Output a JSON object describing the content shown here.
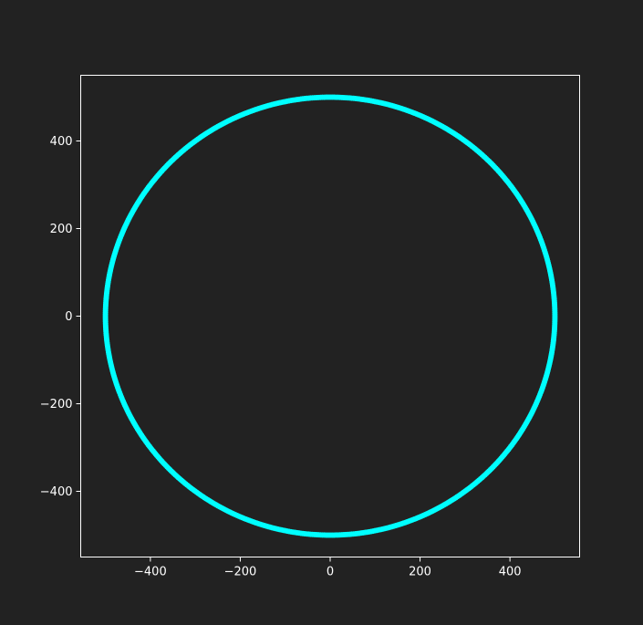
{
  "chart_data": {
    "type": "scatter",
    "title": "",
    "xlabel": "",
    "ylabel": "",
    "xlim": [
      -555,
      555
    ],
    "ylim": [
      -550,
      550
    ],
    "grid": false,
    "legend": "none",
    "x_ticks": [
      -400,
      -200,
      0,
      200,
      400
    ],
    "y_ticks": [
      -400,
      -200,
      0,
      200,
      400
    ],
    "x_tick_labels": [
      "−400",
      "−200",
      "0",
      "200",
      "400"
    ],
    "y_tick_labels": [
      "−400",
      "−200",
      "0",
      "200",
      "400"
    ],
    "series": [
      {
        "shape": "circle",
        "center": [
          0,
          0
        ],
        "radius": 500,
        "point_count": 720,
        "color": "#00ffff"
      }
    ],
    "colors": {
      "background": "#222222",
      "axes": "#ffffff",
      "text": "#ffffff",
      "series": "#00ffff"
    }
  }
}
